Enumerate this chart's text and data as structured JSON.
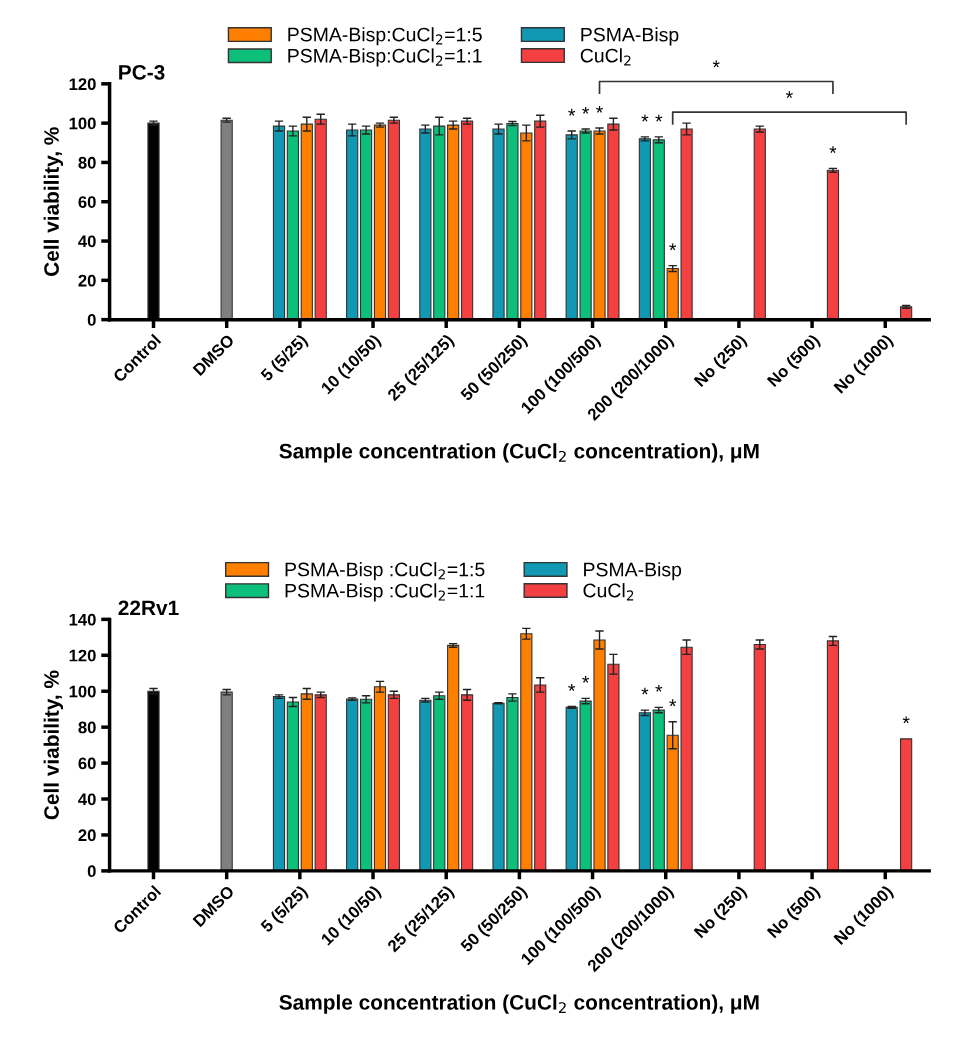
{
  "chart_data": [
    {
      "type": "bar",
      "title": "PC-3",
      "xlabel": "Sample concentration (CuCl$_{2}$ concentration), μM",
      "ylabel": "Cell viability, %",
      "categories": [
        "Control",
        "DMSO",
        "5 (5/25)",
        "10 (10/50)",
        "25 (25/125)",
        "50 (50/250)",
        "100 (100/500)",
        "200 (200/1000)",
        "No (250)",
        "No (500)",
        "No (1000)"
      ],
      "ylim": [
        0,
        120
      ],
      "yticks": [
        0,
        20,
        40,
        60,
        80,
        100,
        120
      ],
      "grid": false,
      "legend": "top",
      "series": [
        {
          "color": "#000000",
          "values": [
            100,
            null,
            null,
            null,
            null,
            null,
            null,
            null,
            null,
            null,
            null
          ],
          "errors": [
            1,
            null,
            null,
            null,
            null,
            null,
            null,
            null,
            null,
            null,
            null
          ]
        },
        {
          "color": "#808080",
          "values": [
            null,
            101.5,
            null,
            null,
            null,
            null,
            null,
            null,
            null,
            null,
            null
          ],
          "errors": [
            null,
            1,
            null,
            null,
            null,
            null,
            null,
            null,
            null,
            null,
            null
          ]
        },
        {
          "name": "PSMA-Bisp",
          "color": "#1199b4",
          "values": [
            null,
            null,
            98.5,
            96.5,
            97,
            97,
            94,
            92,
            null,
            null,
            null
          ],
          "errors": [
            null,
            null,
            2.5,
            3,
            2,
            2.5,
            2,
            1,
            null,
            null,
            null
          ],
          "value_labels": [
            null,
            null,
            null,
            null,
            null,
            null,
            "*",
            "*",
            null,
            null,
            null
          ]
        },
        {
          "name": "PSMA-Bisp:CuCl$_{2}$=1:1",
          "color": "#0cbf7a",
          "values": [
            null,
            null,
            96,
            96.5,
            98.5,
            99.8,
            96,
            91.5,
            null,
            null,
            null
          ],
          "errors": [
            null,
            null,
            2.5,
            2,
            4.5,
            1,
            1,
            1.5,
            null,
            null,
            null
          ],
          "value_labels": [
            null,
            null,
            null,
            null,
            null,
            null,
            "*",
            "*",
            null,
            null,
            null
          ]
        },
        {
          "name": "PSMA-Bisp:CuCl$_{2}$=1:5",
          "color": "#ff8000",
          "values": [
            null,
            null,
            99.5,
            99,
            99,
            95,
            96,
            26,
            null,
            null,
            null
          ],
          "errors": [
            null,
            null,
            3.5,
            1,
            2,
            4,
            1.5,
            1.5,
            null,
            null,
            null
          ],
          "value_labels": [
            null,
            null,
            null,
            null,
            null,
            null,
            "*",
            "*",
            null,
            null,
            null
          ]
        },
        {
          "name": "CuCl$_{2}$",
          "color": "#f44040",
          "values": [
            null,
            null,
            102,
            101.5,
            101,
            101,
            99.5,
            97,
            97,
            76,
            6.5
          ],
          "errors": [
            null,
            null,
            2.5,
            1.5,
            1.5,
            3,
            3,
            3,
            1.5,
            1,
            0.7
          ],
          "value_labels": [
            null,
            null,
            null,
            null,
            null,
            null,
            null,
            null,
            null,
            "*",
            null
          ]
        }
      ],
      "annotations": [
        "*",
        "*"
      ]
    },
    {
      "type": "bar",
      "title": "22Rv1",
      "xlabel": "Sample concentration (CuCl$_{2}$ concentration), μM",
      "ylabel": "Cell viability, %",
      "categories": [
        "Control",
        "DMSO",
        "5 (5/25)",
        "10 (10/50)",
        "25 (25/125)",
        "50 (50/250)",
        "100 (100/500)",
        "200 (200/1000)",
        "No (250)",
        "No (500)",
        "No (1000)"
      ],
      "ylim": [
        0,
        140
      ],
      "yticks": [
        0,
        20,
        40,
        60,
        80,
        100,
        120,
        140
      ],
      "grid": false,
      "legend": "top",
      "series": [
        {
          "color": "#000000",
          "values": [
            100,
            null,
            null,
            null,
            null,
            null,
            null,
            null,
            null,
            null,
            null
          ],
          "errors": [
            1.5,
            null,
            null,
            null,
            null,
            null,
            null,
            null,
            null,
            null,
            null
          ]
        },
        {
          "color": "#808080",
          "values": [
            null,
            99.5,
            null,
            null,
            null,
            null,
            null,
            null,
            null,
            null,
            null
          ],
          "errors": [
            null,
            1.5,
            null,
            null,
            null,
            null,
            null,
            null,
            null,
            null,
            null
          ]
        },
        {
          "name": "PSMA-Bisp",
          "color": "#1199b4",
          "values": [
            null,
            null,
            97,
            95.6,
            95,
            93.3,
            91,
            88,
            null,
            null,
            null
          ],
          "errors": [
            null,
            null,
            1,
            0.7,
            1,
            0.3,
            0.5,
            1.5,
            null,
            null,
            null
          ],
          "value_labels": [
            null,
            null,
            null,
            null,
            null,
            null,
            "*",
            "*",
            null,
            null,
            null
          ]
        },
        {
          "name": "PSMA-Bisp :CuCl$_{2}$=1:1",
          "color": "#0cbf7a",
          "values": [
            null,
            null,
            94,
            95.5,
            97.5,
            96.5,
            94.5,
            89.5,
            null,
            null,
            null
          ],
          "errors": [
            null,
            null,
            2.5,
            2,
            2,
            2,
            1.5,
            1.5,
            null,
            null,
            null
          ],
          "value_labels": [
            null,
            null,
            null,
            null,
            null,
            null,
            "*",
            "*",
            null,
            null,
            null
          ]
        },
        {
          "name": "PSMA-Bisp :CuCl$_{2}$=1:5",
          "color": "#ff8000",
          "values": [
            null,
            null,
            98.5,
            102.5,
            125.5,
            132,
            128.5,
            75.5,
            null,
            null,
            null
          ],
          "errors": [
            null,
            null,
            3,
            3,
            1,
            3,
            5,
            7.5,
            null,
            null,
            null
          ],
          "value_labels": [
            null,
            null,
            null,
            null,
            null,
            null,
            null,
            "*",
            null,
            null,
            null
          ]
        },
        {
          "name": "CuCl$_{2}$",
          "color": "#f44040",
          "values": [
            null,
            null,
            98,
            98,
            98,
            103.5,
            115,
            124.5,
            126,
            128,
            73.5
          ],
          "errors": [
            null,
            null,
            1.5,
            2,
            3,
            4,
            5.5,
            4,
            2.5,
            2.5,
            null
          ],
          "value_labels": [
            null,
            null,
            null,
            null,
            null,
            null,
            null,
            null,
            null,
            null,
            "*"
          ]
        }
      ]
    }
  ]
}
